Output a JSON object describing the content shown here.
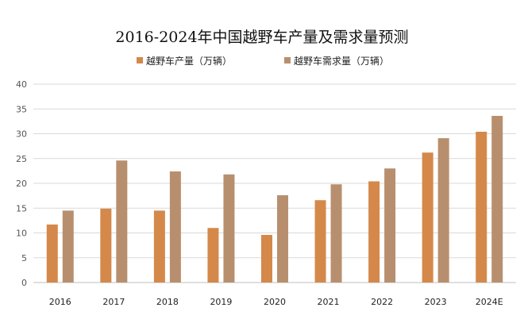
{
  "chart_data": {
    "type": "bar",
    "title": "2016-2024年中国越野车产量及需求量预测",
    "xlabel": "",
    "ylabel": "",
    "categories": [
      "2016",
      "2017",
      "2018",
      "2019",
      "2020",
      "2021",
      "2022",
      "2023",
      "2024E"
    ],
    "series": [
      {
        "name": "越野车产量（万辆）",
        "color": "#d4894a",
        "values": [
          11.7,
          14.9,
          14.5,
          11.0,
          9.6,
          16.6,
          20.4,
          26.2,
          30.4
        ]
      },
      {
        "name": "越野车需求量（万辆）",
        "color": "#b88f6e",
        "values": [
          14.5,
          24.6,
          22.4,
          21.8,
          17.6,
          19.8,
          23.0,
          29.1,
          33.6
        ]
      }
    ],
    "ylim": [
      0,
      40
    ],
    "yticks": [
      0,
      5,
      10,
      15,
      20,
      25,
      30,
      35,
      40
    ],
    "grid": true,
    "legend_position": "top"
  }
}
